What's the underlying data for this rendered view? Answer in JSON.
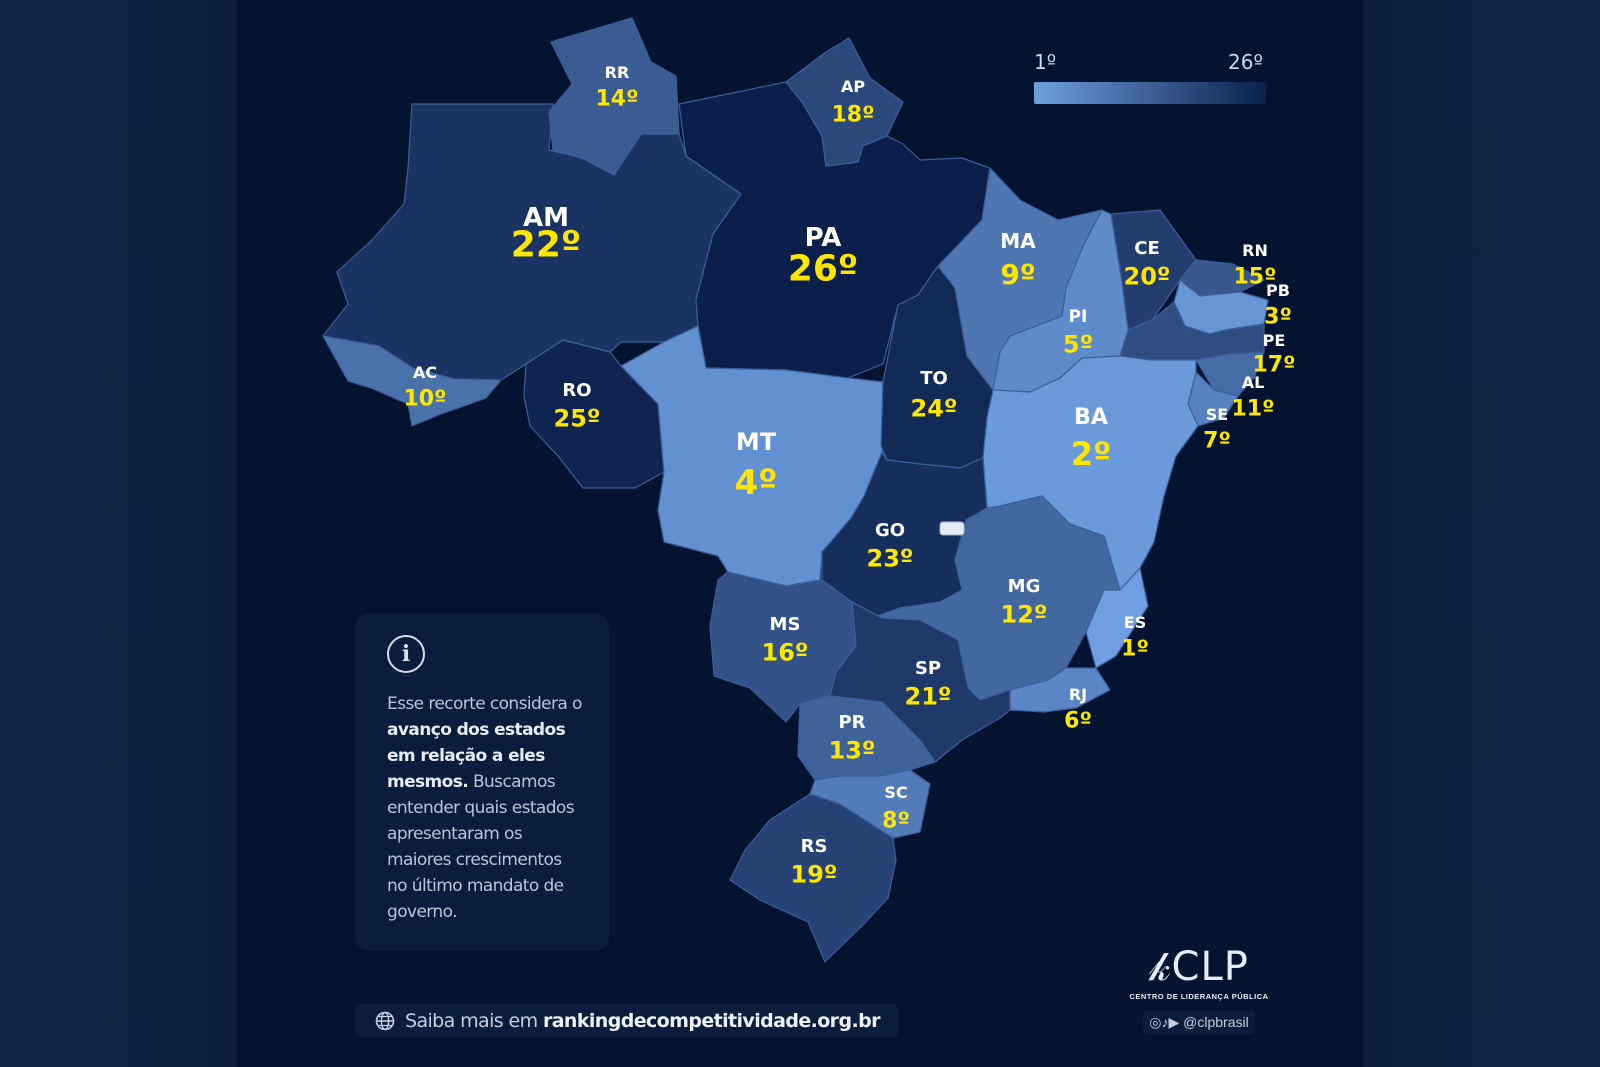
{
  "legend": {
    "min_label": "1º",
    "max_label": "26º",
    "color_low": "#6f9fe2",
    "color_high": "#0b1f4a"
  },
  "states": [
    {
      "abbr": "AM",
      "rank": "22º",
      "rank_value": 22
    },
    {
      "abbr": "PA",
      "rank": "26º",
      "rank_value": 26
    },
    {
      "abbr": "RR",
      "rank": "14º",
      "rank_value": 14
    },
    {
      "abbr": "AP",
      "rank": "18º",
      "rank_value": 18
    },
    {
      "abbr": "AC",
      "rank": "10º",
      "rank_value": 10
    },
    {
      "abbr": "RO",
      "rank": "25º",
      "rank_value": 25
    },
    {
      "abbr": "MT",
      "rank": "4º",
      "rank_value": 4
    },
    {
      "abbr": "TO",
      "rank": "24º",
      "rank_value": 24
    },
    {
      "abbr": "MA",
      "rank": "9º",
      "rank_value": 9
    },
    {
      "abbr": "PI",
      "rank": "5º",
      "rank_value": 5
    },
    {
      "abbr": "CE",
      "rank": "20º",
      "rank_value": 20
    },
    {
      "abbr": "RN",
      "rank": "15º",
      "rank_value": 15
    },
    {
      "abbr": "PB",
      "rank": "3º",
      "rank_value": 3
    },
    {
      "abbr": "PE",
      "rank": "17º",
      "rank_value": 17
    },
    {
      "abbr": "AL",
      "rank": "11º",
      "rank_value": 11
    },
    {
      "abbr": "SE",
      "rank": "7º",
      "rank_value": 7
    },
    {
      "abbr": "BA",
      "rank": "2º",
      "rank_value": 2
    },
    {
      "abbr": "GO",
      "rank": "23º",
      "rank_value": 23
    },
    {
      "abbr": "MG",
      "rank": "12º",
      "rank_value": 12
    },
    {
      "abbr": "ES",
      "rank": "1º",
      "rank_value": 1
    },
    {
      "abbr": "RJ",
      "rank": "6º",
      "rank_value": 6
    },
    {
      "abbr": "SP",
      "rank": "21º",
      "rank_value": 21
    },
    {
      "abbr": "MS",
      "rank": "16º",
      "rank_value": 16
    },
    {
      "abbr": "PR",
      "rank": "13º",
      "rank_value": 13
    },
    {
      "abbr": "SC",
      "rank": "8º",
      "rank_value": 8
    },
    {
      "abbr": "RS",
      "rank": "19º",
      "rank_value": 19
    }
  ],
  "info": {
    "icon": "info-icon",
    "text_1": "Esse recorte considera o ",
    "text_bold": "avanço dos estados em relação a eles mesmos.",
    "text_2": " Buscamos entender quais estados apresentaram os maiores crescimentos no último mandato de governo."
  },
  "footer": {
    "icon": "globe-icon",
    "prefix": "Saiba mais em ",
    "url": "rankingdecompetitividade.org.br"
  },
  "logo": {
    "mark": "CLP",
    "subtitle": "CENTRO DE LIDERANÇA PÚBLICA",
    "social_icons": [
      "instagram-icon",
      "tiktok-icon",
      "youtube-icon"
    ],
    "handle": "@clpbrasil"
  }
}
